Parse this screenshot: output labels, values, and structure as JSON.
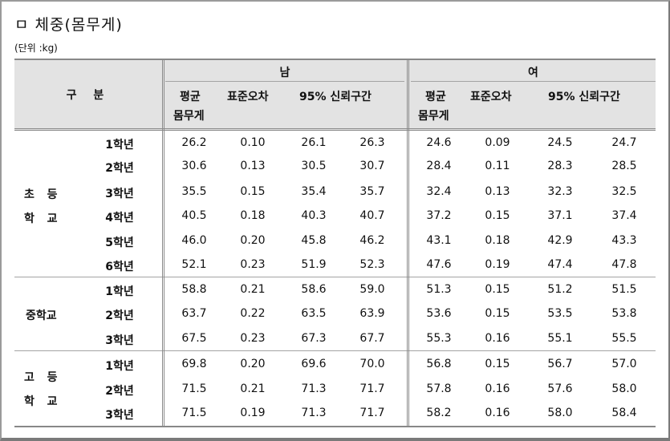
{
  "title": "ㅁ 체중(몸무게)",
  "unit": "(단위 :kg)",
  "header": {
    "category": "구 분",
    "male": "남",
    "female": "여",
    "mean_line1": "평균",
    "mean_line2": "몸무게",
    "stderr": "표준오차",
    "ci": "95% 신뢰구간"
  },
  "groups": [
    {
      "name_line1": "초  등",
      "name_line2": "학  교",
      "rows": [
        {
          "grade": "1학년",
          "m_mean": "26.2",
          "m_se": "0.10",
          "m_lo": "26.1",
          "m_hi": "26.3",
          "f_mean": "24.6",
          "f_se": "0.09",
          "f_lo": "24.5",
          "f_hi": "24.7"
        },
        {
          "grade": "2학년",
          "m_mean": "30.6",
          "m_se": "0.13",
          "m_lo": "30.5",
          "m_hi": "30.7",
          "f_mean": "28.4",
          "f_se": "0.11",
          "f_lo": "28.3",
          "f_hi": "28.5"
        },
        {
          "grade": "3학년",
          "m_mean": "35.5",
          "m_se": "0.15",
          "m_lo": "35.4",
          "m_hi": "35.7",
          "f_mean": "32.4",
          "f_se": "0.13",
          "f_lo": "32.3",
          "f_hi": "32.5"
        },
        {
          "grade": "4학년",
          "m_mean": "40.5",
          "m_se": "0.18",
          "m_lo": "40.3",
          "m_hi": "40.7",
          "f_mean": "37.2",
          "f_se": "0.15",
          "f_lo": "37.1",
          "f_hi": "37.4"
        },
        {
          "grade": "5학년",
          "m_mean": "46.0",
          "m_se": "0.20",
          "m_lo": "45.8",
          "m_hi": "46.2",
          "f_mean": "43.1",
          "f_se": "0.18",
          "f_lo": "42.9",
          "f_hi": "43.3"
        },
        {
          "grade": "6학년",
          "m_mean": "52.1",
          "m_se": "0.23",
          "m_lo": "51.9",
          "m_hi": "52.3",
          "f_mean": "47.6",
          "f_se": "0.19",
          "f_lo": "47.4",
          "f_hi": "47.8"
        }
      ]
    },
    {
      "name_line1": "중학교",
      "name_line2": "",
      "rows": [
        {
          "grade": "1학년",
          "m_mean": "58.8",
          "m_se": "0.21",
          "m_lo": "58.6",
          "m_hi": "59.0",
          "f_mean": "51.3",
          "f_se": "0.15",
          "f_lo": "51.2",
          "f_hi": "51.5"
        },
        {
          "grade": "2학년",
          "m_mean": "63.7",
          "m_se": "0.22",
          "m_lo": "63.5",
          "m_hi": "63.9",
          "f_mean": "53.6",
          "f_se": "0.15",
          "f_lo": "53.5",
          "f_hi": "53.8"
        },
        {
          "grade": "3학년",
          "m_mean": "67.5",
          "m_se": "0.23",
          "m_lo": "67.3",
          "m_hi": "67.7",
          "f_mean": "55.3",
          "f_se": "0.16",
          "f_lo": "55.1",
          "f_hi": "55.5"
        }
      ]
    },
    {
      "name_line1": "고  등",
      "name_line2": "학  교",
      "rows": [
        {
          "grade": "1학년",
          "m_mean": "69.8",
          "m_se": "0.20",
          "m_lo": "69.6",
          "m_hi": "70.0",
          "f_mean": "56.8",
          "f_se": "0.15",
          "f_lo": "56.7",
          "f_hi": "57.0"
        },
        {
          "grade": "2학년",
          "m_mean": "71.5",
          "m_se": "0.21",
          "m_lo": "71.3",
          "m_hi": "71.7",
          "f_mean": "57.8",
          "f_se": "0.16",
          "f_lo": "57.6",
          "f_hi": "58.0"
        },
        {
          "grade": "3학년",
          "m_mean": "71.5",
          "m_se": "0.19",
          "m_lo": "71.3",
          "m_hi": "71.7",
          "f_mean": "58.2",
          "f_se": "0.16",
          "f_lo": "58.0",
          "f_hi": "58.4"
        }
      ]
    }
  ]
}
